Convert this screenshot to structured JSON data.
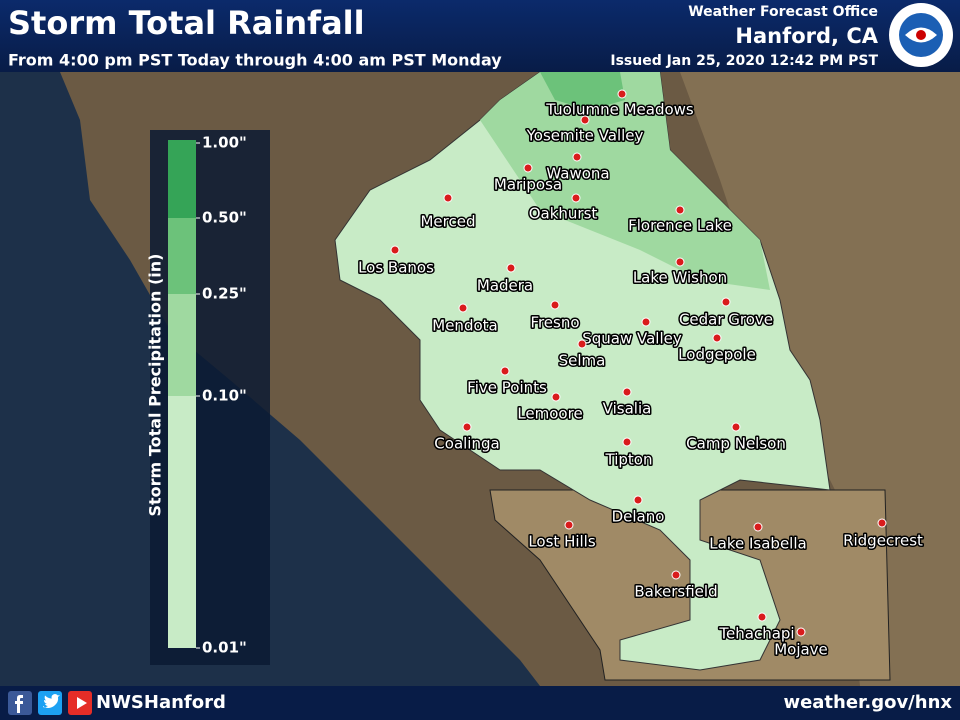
{
  "header": {
    "title": "Storm Total Rainfall",
    "subtitle": "From 4:00 pm PST Today through 4:00 am PST Monday",
    "office": "Weather Forecast Office",
    "location": "Hanford, CA",
    "issued": "Issued Jan 25, 2020 12:42 PM PST"
  },
  "legend": {
    "title": "Storm Total Precipitation (in)",
    "ticks": [
      {
        "value": 1,
        "label": "1.00\""
      },
      {
        "value": 0.5,
        "label": "0.50\""
      },
      {
        "value": 0.25,
        "label": "0.25\""
      },
      {
        "value": 0.1,
        "label": "0.10\""
      },
      {
        "value": 0.01,
        "label": "0.01\""
      }
    ],
    "colors": [
      "#35a457",
      "#6cc27a",
      "#9fd9a0",
      "#c8ebc6"
    ]
  },
  "cities": [
    "Tuolumne Meadows",
    "Yosemite Valley",
    "Mariposa",
    "Wawona",
    "Oakhurst",
    "Merced",
    "Florence Lake",
    "Los Banos",
    "Madera",
    "Lake Wishon",
    "Mendota",
    "Fresno",
    "Cedar Grove",
    "Squaw Valley",
    "Lodgepole",
    "Selma",
    "Five Points",
    "Lemoore",
    "Visalia",
    "Coalinga",
    "Camp Nelson",
    "Tipton",
    "Delano",
    "Lost Hills",
    "Lake Isabella",
    "Ridgecrest",
    "Bakersfield",
    "Tehachapi",
    "Mojave"
  ],
  "footer": {
    "handle": "NWSHanford",
    "url": "weather.gov/hnx"
  }
}
